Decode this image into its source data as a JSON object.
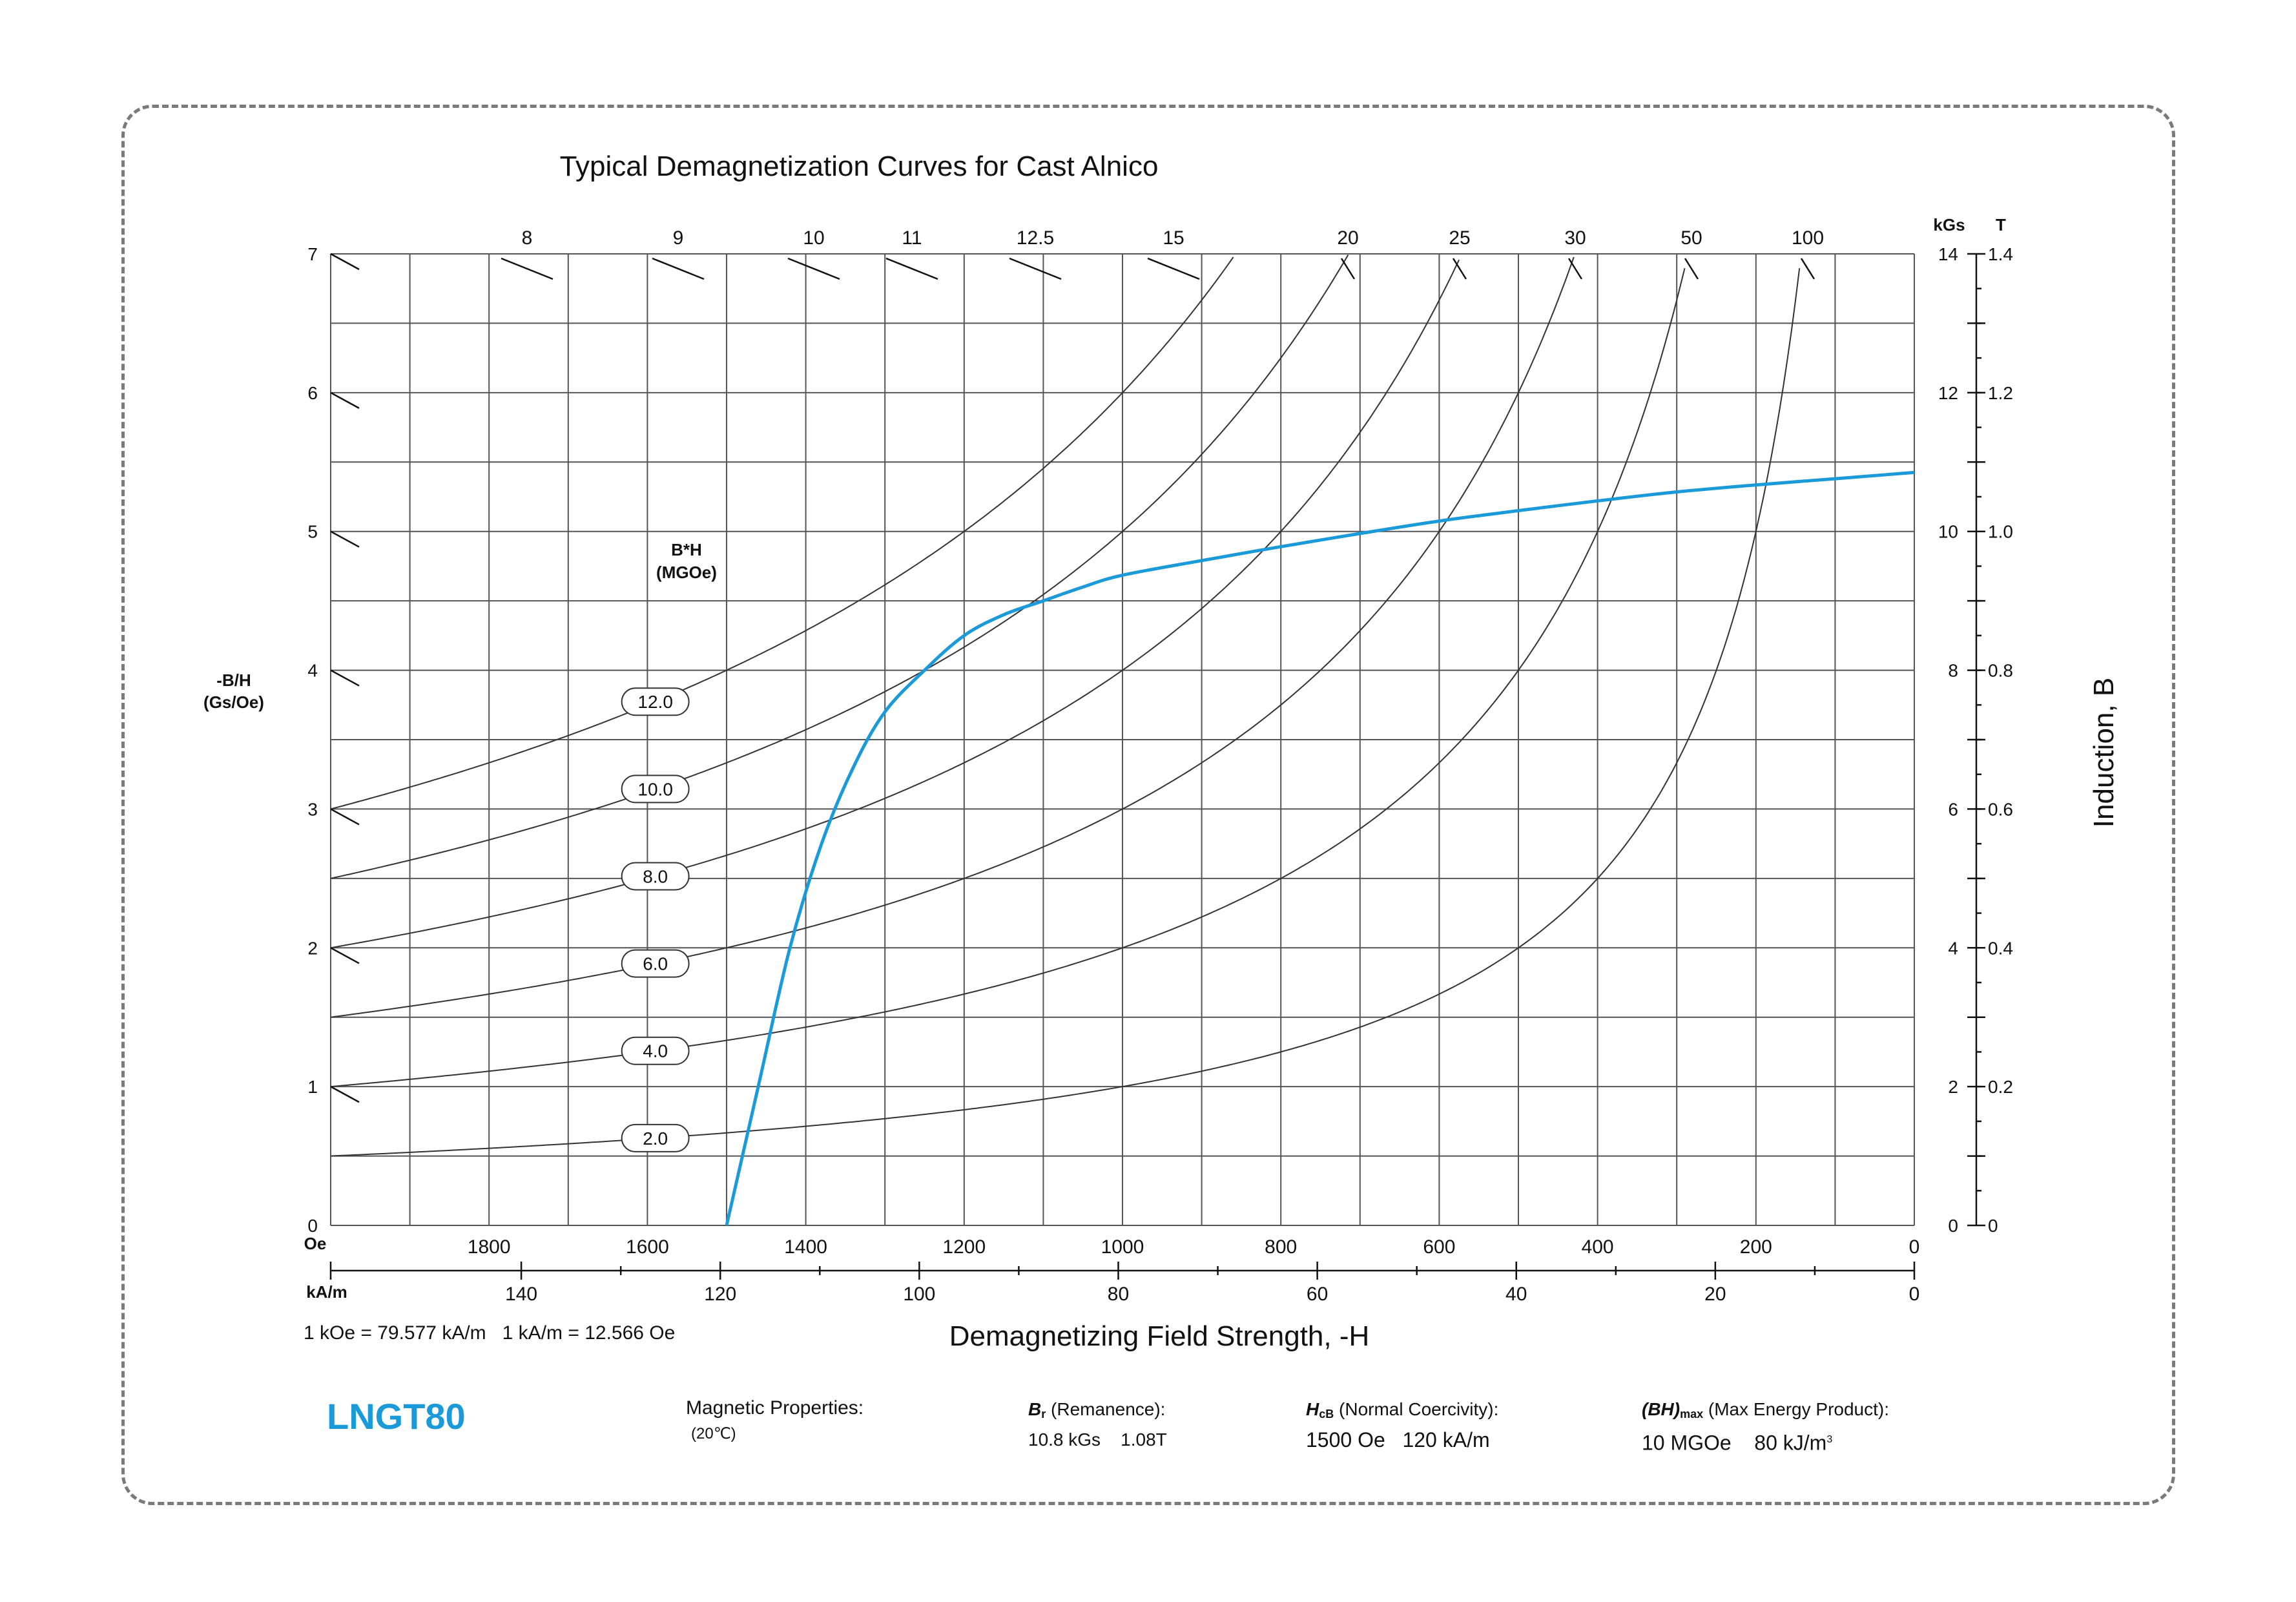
{
  "product": "LNGT80",
  "chart_data": {
    "type": "line",
    "title": "Typical Demagnetization Curves for Cast Alnico",
    "xlabel": "Demagnetizing Field Strength, -H",
    "x_axis_oe": {
      "unit": "Oe",
      "range": [
        2000,
        0
      ],
      "ticks": [
        "1800",
        "1600",
        "1400",
        "1200",
        "1000",
        "800",
        "600",
        "400",
        "200",
        "0"
      ]
    },
    "x_axis_ka": {
      "unit": "kA/m",
      "ticks": [
        "140",
        "120",
        "100",
        "80",
        "60",
        "40",
        "20",
        "0"
      ]
    },
    "conversion": "1 kOe = 79.577 kA/m   1 kA/m = 12.566 Oe",
    "y_left": {
      "label_line1": "-B/H",
      "label_line2": "(Gs/Oe)",
      "range": [
        0,
        7
      ],
      "ticks": [
        "0",
        "1",
        "2",
        "3",
        "4",
        "5",
        "6",
        "7"
      ]
    },
    "y_right": {
      "label": "Induction, B",
      "unit_kgs": "kGs",
      "unit_t": "T",
      "range_kgs": [
        0,
        14
      ],
      "ticks_kgs": [
        "0",
        "2",
        "4",
        "6",
        "8",
        "10",
        "12",
        "14"
      ],
      "ticks_t": [
        "0",
        "0.2",
        "0.4",
        "0.6",
        "0.8",
        "1.0",
        "1.2",
        "1.4"
      ]
    },
    "permeance_labels": [
      "8",
      "9",
      "10",
      "11",
      "12.5",
      "15",
      "20",
      "25",
      "30",
      "50",
      "100"
    ],
    "energy_product_title": "B*H",
    "energy_product_unit": "(MGOe)",
    "energy_products": [
      "12.0",
      "10.0",
      "8.0",
      "6.0",
      "4.0",
      "2.0"
    ],
    "demag_curve": {
      "color": "#1a9ad9",
      "points_oe_kgs": [
        [
          1500,
          0
        ],
        [
          1460,
          2
        ],
        [
          1420,
          4
        ],
        [
          1380,
          5.5
        ],
        [
          1340,
          6.6
        ],
        [
          1300,
          7.4
        ],
        [
          1250,
          8.0
        ],
        [
          1200,
          8.5
        ],
        [
          1150,
          8.8
        ],
        [
          1100,
          9.0
        ],
        [
          1050,
          9.2
        ],
        [
          1000,
          9.37
        ],
        [
          900,
          9.58
        ],
        [
          800,
          9.78
        ],
        [
          700,
          9.97
        ],
        [
          600,
          10.15
        ],
        [
          500,
          10.3
        ],
        [
          400,
          10.44
        ],
        [
          300,
          10.57
        ],
        [
          200,
          10.67
        ],
        [
          100,
          10.76
        ],
        [
          0,
          10.85
        ]
      ]
    }
  },
  "properties": {
    "heading": "Magnetic Properties:",
    "temperature": "(20℃)",
    "br_symbol": "B",
    "br_sub": "r",
    "br_label": " (Remanence):",
    "br_value": "10.8 kGs    1.08T",
    "hcb_symbol": "H",
    "hcb_sub": "cB",
    "hcb_label": " (Normal Coercivity):",
    "hcb_value": "1500 Oe   120 kA/m",
    "bh_symbol": "(BH)",
    "bh_sub": "max",
    "bh_label": " (Max Energy Product):",
    "bh_value": "10 MGOe    80 kJ/m",
    "bh_value_sup": "3"
  }
}
